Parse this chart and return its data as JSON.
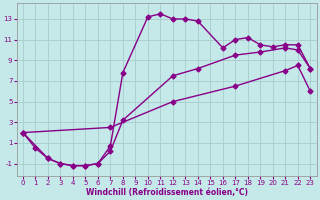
{
  "xlabel": "Windchill (Refroidissement éolien,°C)",
  "xlim": [
    -0.5,
    23.5
  ],
  "ylim": [
    -2.2,
    14.5
  ],
  "xticks": [
    0,
    1,
    2,
    3,
    4,
    5,
    6,
    7,
    8,
    9,
    10,
    11,
    12,
    13,
    14,
    15,
    16,
    17,
    18,
    19,
    20,
    21,
    22,
    23
  ],
  "yticks": [
    -1,
    1,
    3,
    5,
    7,
    9,
    11,
    13
  ],
  "bg_color": "#c5e8e8",
  "grid_color": "#a8cccc",
  "line_color": "#880088",
  "curve1_x": [
    0,
    1,
    2,
    3,
    4,
    5,
    6,
    7,
    8,
    10,
    11,
    12,
    13,
    14,
    16,
    17,
    18,
    19,
    20,
    21,
    22,
    23
  ],
  "curve1_y": [
    2,
    0.5,
    -0.5,
    -1,
    -1.2,
    -1.2,
    -1,
    0.7,
    7.8,
    13.2,
    13.5,
    13.0,
    13.0,
    12.8,
    10.2,
    11.0,
    11.2,
    10.5,
    10.3,
    10.5,
    10.5,
    8.2
  ],
  "curve2_x": [
    0,
    2,
    3,
    4,
    5,
    6,
    7,
    8,
    12,
    14,
    17,
    19,
    21,
    22,
    23
  ],
  "curve2_y": [
    2,
    -0.5,
    -1,
    -1.2,
    -1.2,
    -1,
    0.2,
    3.2,
    7.5,
    8.2,
    9.5,
    9.8,
    10.2,
    10.0,
    8.2
  ],
  "curve3_x": [
    0,
    7,
    12,
    17,
    21,
    22,
    23
  ],
  "curve3_y": [
    2,
    2.5,
    5.0,
    6.5,
    8.0,
    8.5,
    6.0
  ],
  "marker": "D",
  "marker_size": 2.5,
  "line_width": 1.0
}
